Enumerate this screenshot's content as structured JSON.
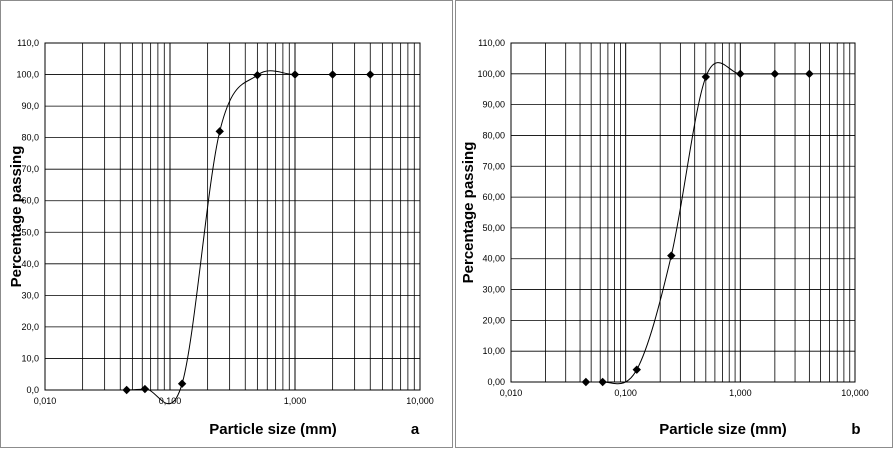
{
  "chart_data": [
    {
      "type": "scatter",
      "panel_letter": "a",
      "xlabel": "Particle size (mm)",
      "ylabel": "Percentage passing",
      "x_scale": "log",
      "xlim": [
        0.01,
        10
      ],
      "ylim": [
        0,
        110
      ],
      "x_ticks": [
        "0,010",
        "0,100",
        "1,000",
        "10,000"
      ],
      "y_ticks": [
        "0,0",
        "10,0",
        "20,0",
        "30,0",
        "40,0",
        "50,0",
        "60,0",
        "70,0",
        "80,0",
        "90,0",
        "100,0",
        "110,0"
      ],
      "grid": true,
      "series": [
        {
          "x": [
            0.045,
            0.063,
            0.125,
            0.25,
            0.5,
            1.0,
            2.0,
            4.0
          ],
          "y": [
            0.0,
            0.3,
            2.0,
            82.0,
            99.8,
            100.0,
            100.0,
            100.0
          ]
        }
      ]
    },
    {
      "type": "scatter",
      "panel_letter": "b",
      "xlabel": "Particle size (mm)",
      "ylabel": "Percentage passing",
      "x_scale": "log",
      "xlim": [
        0.01,
        10
      ],
      "ylim": [
        0,
        110
      ],
      "x_ticks": [
        "0,010",
        "0,100",
        "1,000",
        "10,000"
      ],
      "y_ticks": [
        "0,00",
        "10,00",
        "20,00",
        "30,00",
        "40,00",
        "50,00",
        "60,00",
        "70,00",
        "80,00",
        "90,00",
        "100,00",
        "110,00"
      ],
      "grid": true,
      "series": [
        {
          "x": [
            0.045,
            0.063,
            0.125,
            0.25,
            0.5,
            1.0,
            2.0,
            4.0
          ],
          "y": [
            0.0,
            0.0,
            4.0,
            41.0,
            99.0,
            100.0,
            100.0,
            100.0
          ]
        }
      ]
    }
  ]
}
